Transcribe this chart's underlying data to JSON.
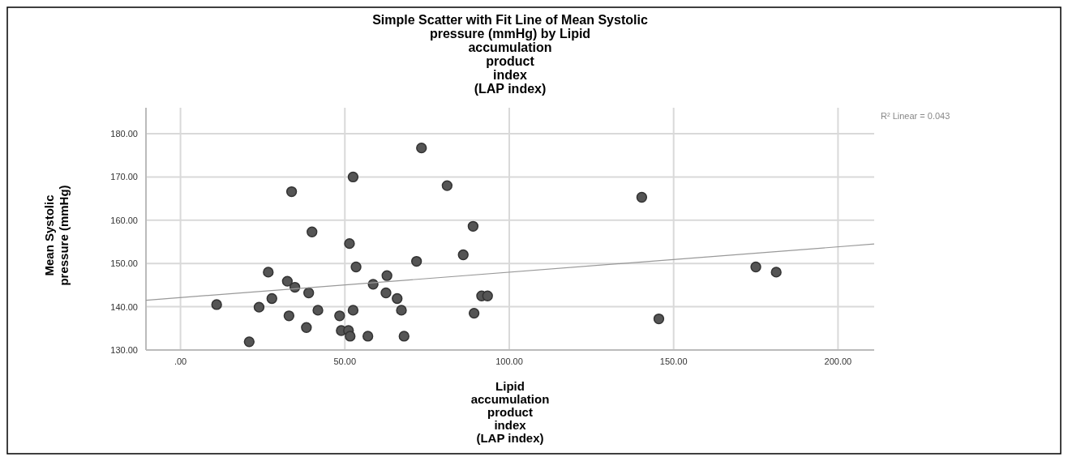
{
  "chart_data": {
    "type": "scatter",
    "title": "Simple Scatter with Fit Line of Mean Systolic\npressure (mmHg) by Lipid\naccumulation\nproduct\nindex\n(LAP index)",
    "xlabel": "Lipid\naccumulation\nproduct\nindex\n(LAP index)",
    "ylabel": "Mean Systolic\npressure (mmHg)",
    "annotations": [
      "R² Linear = 0.043"
    ],
    "xlim": [
      -10.5,
      211
    ],
    "ylim": [
      130,
      186
    ],
    "xticks": [
      {
        "value": 0,
        "label": ".00"
      },
      {
        "value": 50,
        "label": "50.00"
      },
      {
        "value": 100,
        "label": "100.00"
      },
      {
        "value": 150,
        "label": "150.00"
      },
      {
        "value": 200,
        "label": "200.00"
      }
    ],
    "yticks": [
      {
        "value": 130,
        "label": "130.00"
      },
      {
        "value": 140,
        "label": "140.00"
      },
      {
        "value": 150,
        "label": "150.00"
      },
      {
        "value": 160,
        "label": "160.00"
      },
      {
        "value": 170,
        "label": "170.00"
      },
      {
        "value": 180,
        "label": "180.00"
      }
    ],
    "grid": true,
    "series": [
      {
        "marker": "circle",
        "color": "#555555",
        "x": [
          73.3,
          52.5,
          81.1,
          33.8,
          89.0,
          40.0,
          51.4,
          86.0,
          71.8,
          53.4,
          26.7,
          62.8,
          32.5,
          58.6,
          34.8,
          39.0,
          62.5,
          27.8,
          65.9,
          91.6,
          93.4,
          11.0,
          23.9,
          41.8,
          52.5,
          67.2,
          33.0,
          48.4,
          89.3,
          38.3,
          48.9,
          51.1,
          51.6,
          57.0,
          68.0,
          20.9,
          140.3,
          145.5,
          175.0,
          181.2
        ],
        "values": [
          176.7,
          170.0,
          168.0,
          166.6,
          158.6,
          157.3,
          154.6,
          152.0,
          150.5,
          149.2,
          148.0,
          147.2,
          145.9,
          145.2,
          144.5,
          143.2,
          143.2,
          141.9,
          141.9,
          142.5,
          142.5,
          140.5,
          139.9,
          139.2,
          139.2,
          139.2,
          137.9,
          137.9,
          138.5,
          135.2,
          134.5,
          134.5,
          133.2,
          133.2,
          133.2,
          131.9,
          165.3,
          137.2,
          149.2,
          148.0
        ]
      },
      {
        "type": "line",
        "color": "#999999",
        "x": [
          -10.5,
          211
        ],
        "values": [
          141.5,
          154.5
        ]
      }
    ]
  }
}
